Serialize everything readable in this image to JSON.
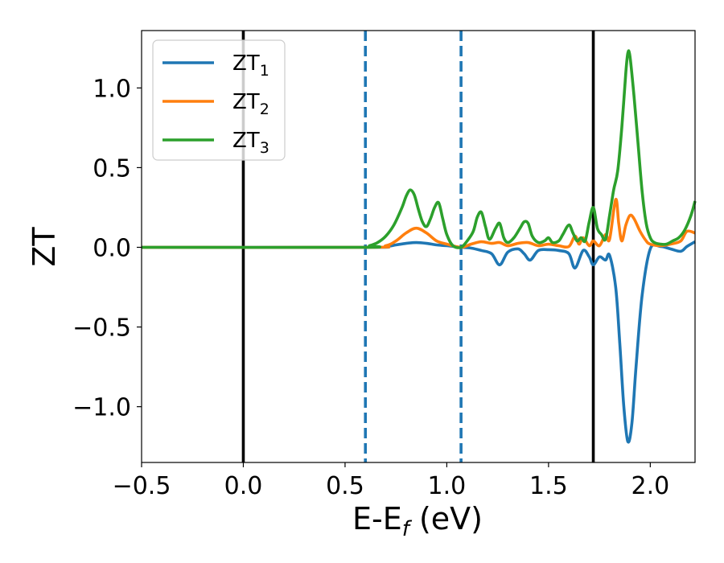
{
  "chart_data": {
    "type": "line",
    "xlabel_main": "E-E",
    "xlabel_sub": "f",
    "xlabel_unit": " (eV)",
    "ylabel": "ZT",
    "xlim": [
      -0.5,
      2.22
    ],
    "ylim": [
      -1.35,
      1.36
    ],
    "xticks": [
      -0.5,
      0.0,
      0.5,
      1.0,
      1.5,
      2.0
    ],
    "xtick_labels": [
      "−0.5",
      "0.0",
      "0.5",
      "1.0",
      "1.5",
      "2.0"
    ],
    "yticks": [
      -1.0,
      -0.5,
      0.0,
      0.5,
      1.0
    ],
    "ytick_labels": [
      "−1.0",
      "−0.5",
      "0.0",
      "0.5",
      "1.0"
    ],
    "grid": false,
    "legend_position": "top-left",
    "vlines": [
      {
        "x": 0.0,
        "style": "solid",
        "color": "#000000"
      },
      {
        "x": 0.6,
        "style": "dashed",
        "color": "#1f77b4"
      },
      {
        "x": 1.07,
        "style": "dashed",
        "color": "#1f77b4"
      },
      {
        "x": 1.72,
        "style": "solid",
        "color": "#000000"
      }
    ],
    "series": [
      {
        "name": "ZT",
        "subscript": "1",
        "color": "#1f77b4",
        "x": [
          -0.5,
          0.6,
          0.7,
          0.75,
          0.8,
          0.85,
          0.9,
          0.95,
          1.0,
          1.07,
          1.12,
          1.17,
          1.22,
          1.26,
          1.3,
          1.35,
          1.38,
          1.41,
          1.45,
          1.5,
          1.55,
          1.6,
          1.63,
          1.67,
          1.7,
          1.72,
          1.75,
          1.78,
          1.8,
          1.83,
          1.85,
          1.87,
          1.89,
          1.91,
          1.93,
          1.96,
          2.0,
          2.05,
          2.1,
          2.15,
          2.18,
          2.22
        ],
        "y": [
          0.0,
          0.0,
          0.005,
          0.015,
          0.025,
          0.03,
          0.025,
          0.015,
          0.01,
          0.0,
          -0.005,
          -0.02,
          -0.04,
          -0.11,
          -0.03,
          -0.01,
          -0.04,
          -0.08,
          -0.02,
          -0.015,
          -0.02,
          -0.04,
          -0.13,
          -0.02,
          -0.06,
          -0.11,
          -0.06,
          -0.08,
          -0.05,
          -0.25,
          -0.6,
          -1.0,
          -1.22,
          -1.1,
          -0.75,
          -0.3,
          -0.01,
          0.005,
          -0.01,
          -0.025,
          0.005,
          0.035
        ]
      },
      {
        "name": "ZT",
        "subscript": "2",
        "color": "#ff7f0e",
        "x": [
          -0.5,
          0.6,
          0.7,
          0.75,
          0.8,
          0.85,
          0.9,
          0.95,
          1.0,
          1.07,
          1.12,
          1.17,
          1.22,
          1.26,
          1.3,
          1.35,
          1.4,
          1.45,
          1.5,
          1.55,
          1.6,
          1.63,
          1.65,
          1.67,
          1.7,
          1.72,
          1.75,
          1.78,
          1.8,
          1.83,
          1.845,
          1.86,
          1.88,
          1.9,
          1.92,
          1.95,
          1.98,
          2.0,
          2.05,
          2.1,
          2.15,
          2.18,
          2.22
        ],
        "y": [
          0.0,
          0.0,
          0.01,
          0.04,
          0.09,
          0.12,
          0.09,
          0.04,
          0.02,
          0.0,
          0.02,
          0.035,
          0.025,
          0.03,
          0.01,
          0.025,
          0.03,
          0.01,
          0.02,
          0.01,
          0.005,
          0.07,
          0.02,
          0.06,
          0.01,
          0.04,
          0.01,
          0.08,
          0.05,
          0.3,
          0.15,
          0.04,
          0.14,
          0.2,
          0.18,
          0.1,
          0.04,
          0.02,
          0.01,
          0.02,
          0.04,
          0.1,
          0.09
        ]
      },
      {
        "name": "ZT",
        "subscript": "3",
        "color": "#2ca02c",
        "x": [
          -0.5,
          0.58,
          0.62,
          0.66,
          0.7,
          0.74,
          0.78,
          0.8,
          0.82,
          0.84,
          0.86,
          0.88,
          0.9,
          0.92,
          0.94,
          0.96,
          0.98,
          1.0,
          1.03,
          1.07,
          1.1,
          1.13,
          1.15,
          1.17,
          1.19,
          1.21,
          1.24,
          1.26,
          1.28,
          1.3,
          1.33,
          1.36,
          1.38,
          1.4,
          1.42,
          1.45,
          1.48,
          1.5,
          1.52,
          1.55,
          1.57,
          1.6,
          1.62,
          1.64,
          1.66,
          1.68,
          1.7,
          1.72,
          1.74,
          1.76,
          1.78,
          1.8,
          1.82,
          1.84,
          1.86,
          1.88,
          1.89,
          1.9,
          1.92,
          1.94,
          1.96,
          1.98,
          2.0,
          2.02,
          2.05,
          2.08,
          2.11,
          2.14,
          2.17,
          2.2,
          2.22
        ],
        "y": [
          0.0,
          0.0,
          0.01,
          0.03,
          0.07,
          0.14,
          0.25,
          0.32,
          0.36,
          0.33,
          0.24,
          0.16,
          0.13,
          0.18,
          0.25,
          0.28,
          0.18,
          0.08,
          0.01,
          0.0,
          0.04,
          0.1,
          0.19,
          0.22,
          0.13,
          0.05,
          0.12,
          0.15,
          0.06,
          0.03,
          0.06,
          0.12,
          0.16,
          0.15,
          0.07,
          0.03,
          0.04,
          0.06,
          0.03,
          0.04,
          0.08,
          0.14,
          0.09,
          0.04,
          0.06,
          0.04,
          0.16,
          0.25,
          0.12,
          0.08,
          0.05,
          0.2,
          0.36,
          0.48,
          0.75,
          1.1,
          1.22,
          1.2,
          0.95,
          0.65,
          0.35,
          0.15,
          0.06,
          0.03,
          0.02,
          0.02,
          0.04,
          0.06,
          0.11,
          0.2,
          0.29
        ]
      }
    ]
  }
}
